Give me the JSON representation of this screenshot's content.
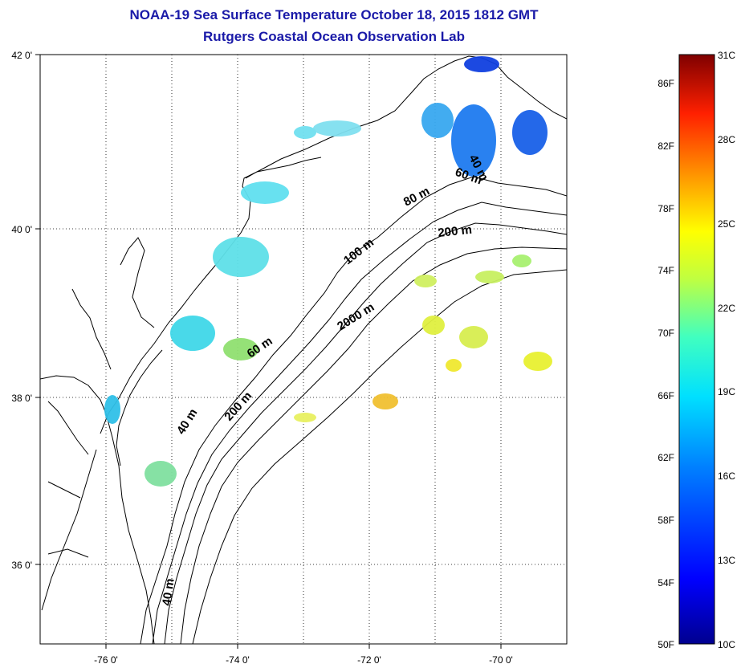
{
  "title": {
    "line1": "NOAA-19 Sea Surface Temperature October 18, 2015 1812 GMT",
    "line2": "Rutgers Coastal Ocean Observation Lab"
  },
  "map": {
    "lat_ticks": [
      "42 0'",
      "40 0'",
      "38 0'",
      "36 0'"
    ],
    "lon_ticks": [
      "-76 0'",
      "-74 0'",
      "-72 0'",
      "-70 0'"
    ],
    "contour_labels": [
      "40 m",
      "60 m",
      "80 m",
      "200 m",
      "100 m",
      "2000 m",
      "60 m",
      "40 m",
      "200 m",
      "40 m"
    ]
  },
  "colorbar": {
    "f_labels": [
      "86F",
      "82F",
      "78F",
      "74F",
      "70F",
      "66F",
      "62F",
      "58F",
      "54F",
      "50F"
    ],
    "c_labels": [
      "31C",
      "28C",
      "25C",
      "22C",
      "19C",
      "16C",
      "13C",
      "10C"
    ],
    "colors": [
      "#7f0000",
      "#ff0000",
      "#ff8000",
      "#ffff00",
      "#80ff80",
      "#00ffff",
      "#0080ff",
      "#0000ff",
      "#00008f"
    ]
  }
}
